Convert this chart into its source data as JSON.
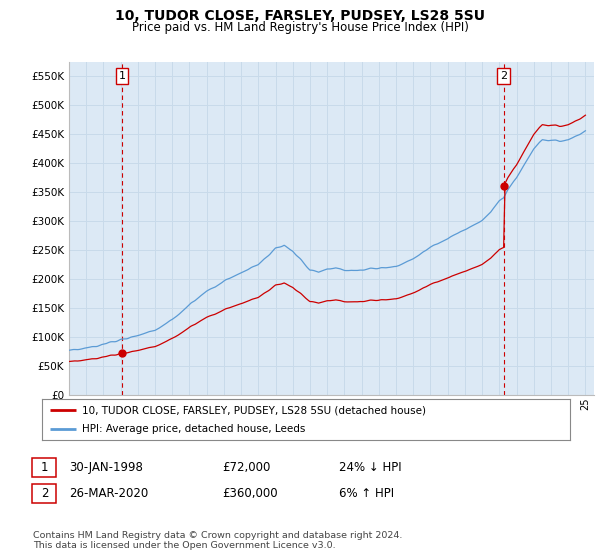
{
  "title": "10, TUDOR CLOSE, FARSLEY, PUDSEY, LS28 5SU",
  "subtitle": "Price paid vs. HM Land Registry's House Price Index (HPI)",
  "legend_line1": "10, TUDOR CLOSE, FARSLEY, PUDSEY, LS28 5SU (detached house)",
  "legend_line2": "HPI: Average price, detached house, Leeds",
  "sale1_date": "30-JAN-1998",
  "sale1_price": "£72,000",
  "sale1_hpi": "24% ↓ HPI",
  "sale2_date": "26-MAR-2020",
  "sale2_price": "£360,000",
  "sale2_hpi": "6% ↑ HPI",
  "footnote": "Contains HM Land Registry data © Crown copyright and database right 2024.\nThis data is licensed under the Open Government Licence v3.0.",
  "ylabel_ticks": [
    "£0",
    "£50K",
    "£100K",
    "£150K",
    "£200K",
    "£250K",
    "£300K",
    "£350K",
    "£400K",
    "£450K",
    "£500K",
    "£550K"
  ],
  "yvalues": [
    0,
    50000,
    100000,
    150000,
    200000,
    250000,
    300000,
    350000,
    400000,
    450000,
    500000,
    550000
  ],
  "ylim": [
    0,
    575000
  ],
  "hpi_color": "#5b9bd5",
  "price_color": "#cc0000",
  "grid_color": "#c8daea",
  "bg_color": "#ffffff",
  "plot_bg_color": "#dce9f5",
  "vline_color": "#cc0000",
  "marker_color": "#cc0000",
  "sale1_year_val": 1998.08,
  "sale1_price_val": 72000,
  "sale2_year_val": 2020.25,
  "sale2_price_val": 360000
}
